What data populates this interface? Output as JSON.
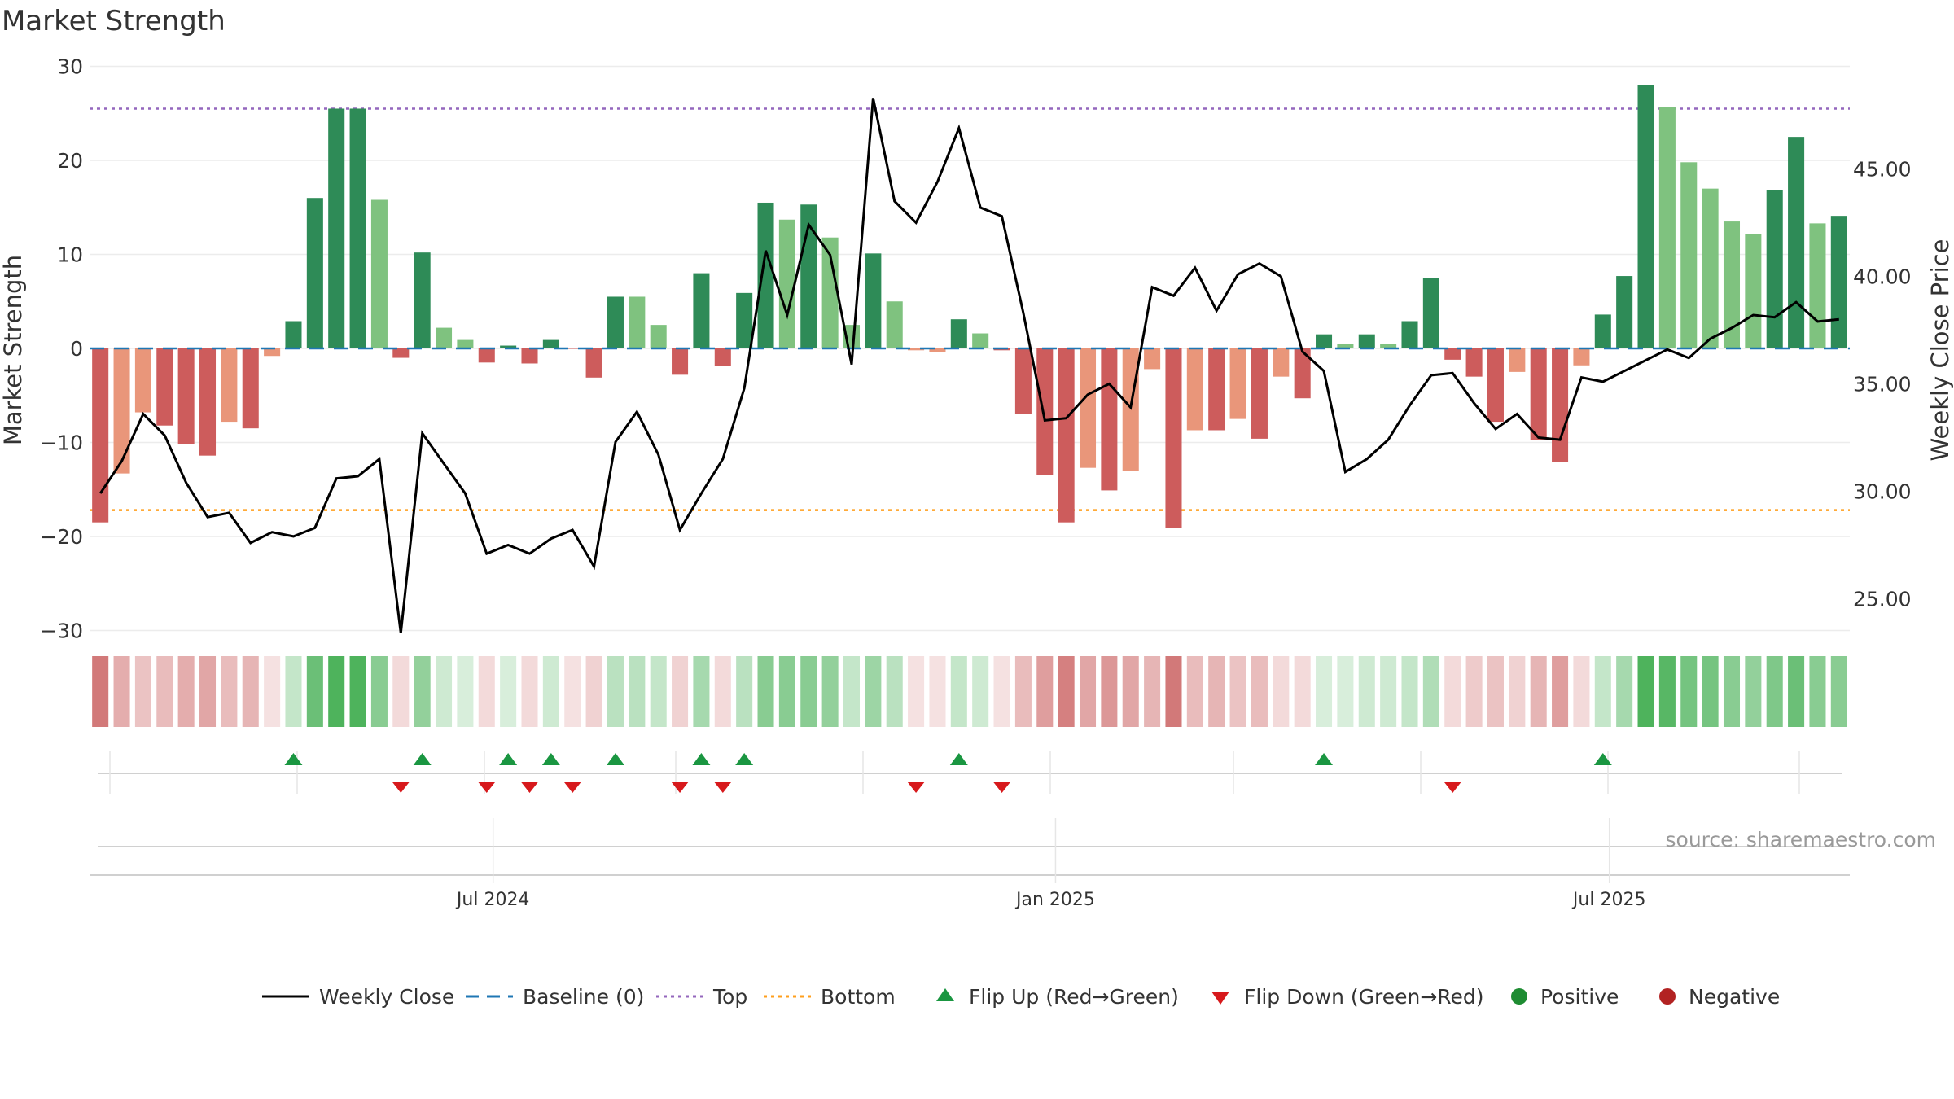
{
  "title": "Market Strength",
  "source": "source: sharemaestro.com",
  "colors": {
    "pos_dark": "#2e8b57",
    "pos_light": "#7fc27f",
    "neg_dark": "#cd5c5c",
    "neg_light": "#e9967a",
    "price_line": "#000000",
    "baseline": "#1f77b4",
    "top": "#9467bd",
    "bottom": "#ff9f1c",
    "flip_up": "#1a9641",
    "flip_down": "#d7191c",
    "positive": "#1e8c32",
    "negative": "#b22222"
  },
  "legend": [
    {
      "key": "weekly_close",
      "label": "Weekly Close"
    },
    {
      "key": "baseline",
      "label": "Baseline (0)"
    },
    {
      "key": "top",
      "label": "Top"
    },
    {
      "key": "bottom",
      "label": "Bottom"
    },
    {
      "key": "flip_up",
      "label": "Flip Up (Red→Green)"
    },
    {
      "key": "flip_down",
      "label": "Flip Down (Green→Red)"
    },
    {
      "key": "positive",
      "label": "Positive"
    },
    {
      "key": "negative",
      "label": "Negative"
    }
  ],
  "chart_data": {
    "type": "bar",
    "title": "Market Strength",
    "ylabel": "Market Strength",
    "y2label": "Weekly Close Price",
    "ylim": [
      -30,
      30
    ],
    "y2lim": [
      22.5,
      50
    ],
    "yticks": [
      "30",
      "20",
      "10",
      "0",
      "−10",
      "−20",
      "−30"
    ],
    "y2ticks": [
      "45.00",
      "40.00",
      "35.00",
      "30.00",
      "25.00"
    ],
    "xticks": [
      {
        "label": "Jul 2024",
        "index": 18.3
      },
      {
        "label": "Jan 2025",
        "index": 44.5
      },
      {
        "label": "Jul 2025",
        "index": 70.3
      }
    ],
    "top_line": 25.5,
    "bottom_line": -17.2,
    "baseline": 0,
    "strength": [
      -18.5,
      -13.3,
      -6.8,
      -8.2,
      -10.2,
      -11.4,
      -7.8,
      -8.5,
      -0.8,
      2.9,
      16,
      25.5,
      25.5,
      15.8,
      -1.0,
      10.2,
      2.2,
      0.9,
      -1.5,
      0.3,
      -1.6,
      0.9,
      0,
      -3.1,
      5.5,
      5.5,
      2.5,
      -2.8,
      8,
      -1.9,
      5.9,
      15.5,
      13.7,
      15.3,
      11.8,
      2.5,
      10.1,
      5,
      -0.2,
      -0.4,
      3.1,
      1.6,
      -0.2,
      -7,
      -13.5,
      -18.5,
      -12.7,
      -15.1,
      -13,
      -2.2,
      -19.1,
      -8.7,
      -8.7,
      -7.5,
      -9.6,
      -3,
      -5.3,
      1.5,
      0.5,
      1.5,
      0.5,
      2.9,
      7.5,
      -1.2,
      -3,
      -7.8,
      -2.5,
      -9.7,
      -12.1,
      -1.8,
      3.6,
      7.7,
      28,
      25.7,
      19.8,
      17,
      13.5,
      12.2,
      16.8,
      22.5,
      13.3,
      14.1
    ],
    "shades": [
      "negative",
      "negative_light",
      "negative_light",
      "negative",
      "negative",
      "negative",
      "negative_light",
      "negative",
      "negative_light",
      "positive",
      "positive",
      "positive",
      "positive",
      "positive_light",
      "negative",
      "positive",
      "positive_light",
      "positive_light",
      "negative",
      "positive",
      "negative",
      "positive",
      "negative",
      "negative",
      "positive",
      "positive_light",
      "positive_light",
      "negative",
      "positive",
      "negative",
      "positive",
      "positive",
      "positive_light",
      "positive",
      "positive_light",
      "positive_light",
      "positive",
      "positive_light",
      "negative_light",
      "negative_light",
      "positive",
      "positive_light",
      "negative",
      "negative",
      "negative",
      "negative",
      "negative_light",
      "negative",
      "negative_light",
      "negative_light",
      "negative",
      "negative_light",
      "negative",
      "negative_light",
      "negative",
      "negative_light",
      "negative",
      "positive",
      "positive_light",
      "positive",
      "positive_light",
      "positive",
      "positive",
      "negative",
      "negative",
      "negative",
      "negative_light",
      "negative",
      "negative",
      "negative_light",
      "positive",
      "positive",
      "positive",
      "positive_light",
      "positive_light",
      "positive_light",
      "positive_light",
      "positive_light",
      "positive",
      "positive",
      "positive_light",
      "positive"
    ],
    "heat_levels": [
      -0.9,
      -0.55,
      -0.4,
      -0.45,
      -0.55,
      -0.6,
      -0.45,
      -0.5,
      -0.2,
      0.3,
      0.75,
      0.9,
      0.9,
      0.6,
      -0.25,
      0.55,
      0.25,
      0.2,
      -0.25,
      0.2,
      -0.25,
      0.25,
      -0.2,
      -0.3,
      0.35,
      0.35,
      0.3,
      -0.3,
      0.45,
      -0.25,
      0.35,
      0.6,
      0.6,
      0.6,
      0.55,
      0.3,
      0.5,
      0.35,
      -0.2,
      -0.2,
      0.3,
      0.25,
      -0.2,
      -0.45,
      -0.65,
      -0.85,
      -0.6,
      -0.7,
      -0.6,
      -0.5,
      -0.9,
      -0.45,
      -0.5,
      -0.4,
      -0.45,
      -0.25,
      -0.25,
      0.2,
      0.2,
      0.25,
      0.25,
      0.3,
      0.4,
      -0.25,
      -0.35,
      -0.4,
      -0.3,
      -0.5,
      -0.65,
      -0.25,
      0.3,
      0.45,
      0.9,
      0.85,
      0.7,
      0.7,
      0.6,
      0.55,
      0.65,
      0.75,
      0.6,
      0.6
    ],
    "weekly_close": [
      29.9,
      31.4,
      33.6,
      32.6,
      30.4,
      28.8,
      29,
      27.6,
      28.1,
      27.9,
      28.3,
      30.6,
      30.7,
      31.5,
      23.4,
      32.7,
      31.3,
      29.9,
      27.1,
      27.5,
      27.1,
      27.8,
      28.2,
      26.5,
      32.3,
      33.7,
      31.7,
      28.2,
      29.9,
      31.5,
      34.8,
      41.2,
      38.2,
      42.4,
      41,
      35.9,
      48.3,
      43.5,
      42.5,
      44.4,
      46.9,
      43.2,
      42.8,
      38.3,
      33.3,
      33.4,
      34.5,
      35,
      33.9,
      39.5,
      39.1,
      40.4,
      38.4,
      40.1,
      40.6,
      40,
      36.5,
      35.6,
      30.9,
      31.5,
      32.4,
      34,
      35.4,
      35.5,
      34.1,
      32.9,
      33.6,
      32.5,
      32.4,
      35.3,
      35.1,
      35.6,
      36.1,
      36.6,
      36.2,
      37.1,
      37.6,
      38.2,
      38.1,
      38.8,
      37.9,
      38
    ],
    "flip_up": [
      9,
      15,
      19,
      21,
      24,
      28,
      30,
      40,
      57,
      70
    ],
    "flip_down": [
      14,
      18,
      20,
      22,
      27,
      29,
      38,
      42,
      63
    ]
  }
}
